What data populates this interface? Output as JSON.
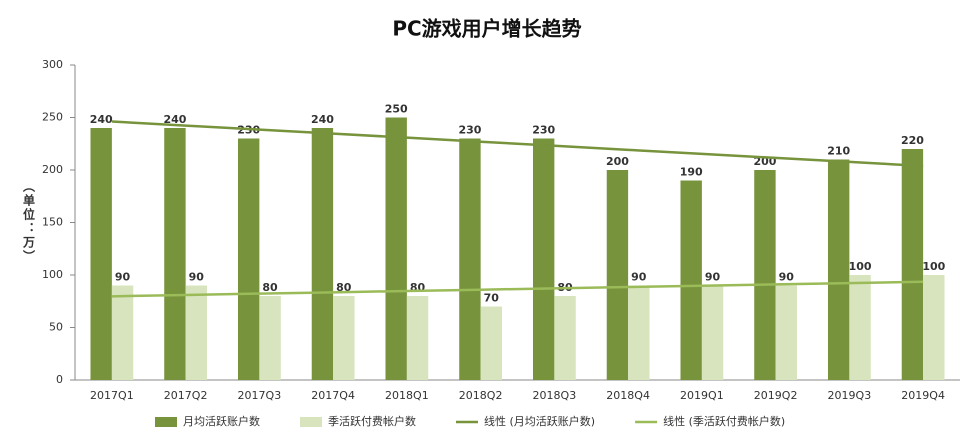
{
  "chart_data": {
    "type": "bar",
    "title": "PC游戏用户增长趋势",
    "y_label": "（单位：万）",
    "categories": [
      "2017Q1",
      "2017Q2",
      "2017Q3",
      "2017Q4",
      "2018Q1",
      "2018Q2",
      "2018Q3",
      "2018Q4",
      "2019Q1",
      "2019Q2",
      "2019Q3",
      "2019Q4"
    ],
    "series": [
      {
        "name": "月均活跃账户数",
        "type": "bar",
        "color": "#77933c",
        "values": [
          240,
          240,
          230,
          240,
          250,
          230,
          230,
          200,
          190,
          200,
          210,
          220
        ]
      },
      {
        "name": "季活跃付费帐户数",
        "type": "bar",
        "color": "#d7e4bd",
        "values": [
          90,
          90,
          80,
          80,
          80,
          70,
          80,
          90,
          90,
          90,
          100,
          100
        ]
      },
      {
        "name": "线性 (月均活跃账户数)",
        "type": "line",
        "color": "#77933c",
        "values": [
          246.2,
          242.3,
          238.5,
          234.6,
          230.8,
          226.9,
          223.1,
          219.2,
          215.4,
          211.5,
          207.7,
          203.8
        ]
      },
      {
        "name": "线性 (季活跃付费帐户数)",
        "type": "line",
        "color": "#9bbb59",
        "values": [
          79.7,
          81.0,
          82.3,
          83.5,
          84.8,
          86.0,
          87.3,
          88.6,
          89.8,
          91.1,
          92.3,
          93.6
        ]
      }
    ],
    "ylim": [
      0,
      300
    ],
    "yticks": [
      0,
      50,
      100,
      150,
      200,
      250,
      300
    ],
    "grid": false
  }
}
